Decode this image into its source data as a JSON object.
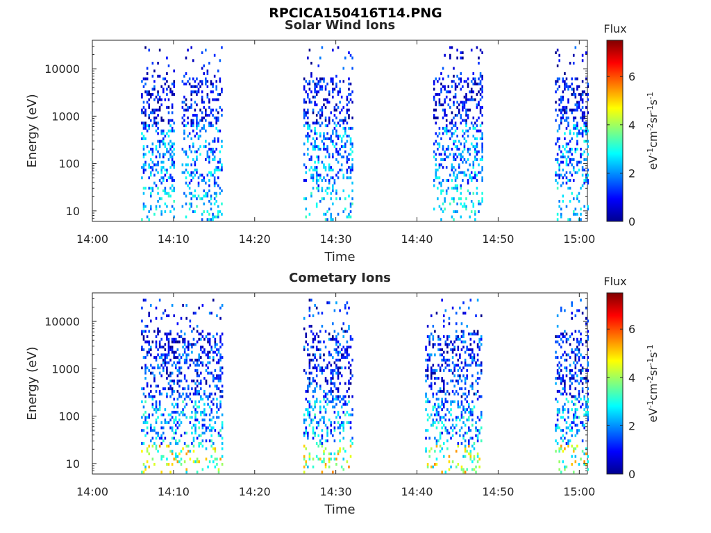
{
  "figure": {
    "title": "RPCICA150416T14.PNG"
  },
  "colorbar": {
    "label_title": "Flux",
    "unit": "eV-1cm-2sr-1s-1",
    "ticks": [
      "0",
      "2",
      "4",
      "6"
    ],
    "range": [
      0,
      7.5
    ],
    "colormap": "jet"
  },
  "chart_data": [
    {
      "type": "heatmap",
      "title": "Solar Wind Ions",
      "xlabel": "Time",
      "ylabel": "Energy (eV)",
      "yscale": "log",
      "ylim": [
        6,
        40000
      ],
      "xlim": [
        "14:00",
        "15:01"
      ],
      "xticks": [
        "14:00",
        "14:10",
        "14:20",
        "14:30",
        "14:40",
        "14:50",
        "15:00"
      ],
      "yticks": [
        "10",
        "100",
        "1000",
        "10000"
      ],
      "active_intervals": [
        {
          "start": "14:06",
          "end": "14:10"
        },
        {
          "start": "14:11",
          "end": "14:16"
        },
        {
          "start": "14:26",
          "end": "14:32"
        },
        {
          "start": "14:42",
          "end": "14:48"
        },
        {
          "start": "14:57",
          "end": "15:01"
        }
      ],
      "typical_flux": "0-3 (mostly blue to cyan)"
    },
    {
      "type": "heatmap",
      "title": "Cometary Ions",
      "xlabel": "Time",
      "ylabel": "Energy (eV)",
      "yscale": "log",
      "ylim": [
        6,
        40000
      ],
      "xlim": [
        "14:00",
        "15:01"
      ],
      "xticks": [
        "14:00",
        "14:10",
        "14:20",
        "14:30",
        "14:40",
        "14:50",
        "15:00"
      ],
      "yticks": [
        "10",
        "100",
        "1000",
        "10000"
      ],
      "active_intervals": [
        {
          "start": "14:06",
          "end": "14:16"
        },
        {
          "start": "14:26",
          "end": "14:32"
        },
        {
          "start": "14:41",
          "end": "14:48"
        },
        {
          "start": "14:57",
          "end": "15:01"
        }
      ],
      "typical_flux": "0-5 (blue to yellow at lowest energies)"
    }
  ]
}
